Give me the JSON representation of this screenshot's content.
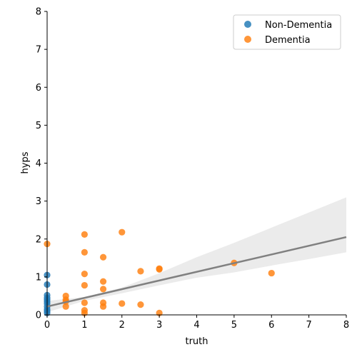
{
  "chart_data": {
    "type": "scatter",
    "xlabel": "truth",
    "ylabel": "hyps",
    "xlim": [
      0,
      8
    ],
    "ylim": [
      0,
      8
    ],
    "x_ticks": [
      "0",
      "1",
      "2",
      "3",
      "4",
      "5",
      "6",
      "7",
      "8"
    ],
    "y_ticks": [
      "0",
      "1",
      "2",
      "3",
      "4",
      "5",
      "6",
      "7",
      "8"
    ],
    "grid": false,
    "legend_position": "top-right",
    "series": [
      {
        "name": "Non-Dementia",
        "color": "#1f77b4",
        "points": [
          {
            "x": 0,
            "y": 1.05
          },
          {
            "x": 0,
            "y": 0.8
          },
          {
            "x": 0,
            "y": 0.52
          },
          {
            "x": 0,
            "y": 0.45
          },
          {
            "x": 0,
            "y": 0.4
          },
          {
            "x": 0,
            "y": 0.35
          },
          {
            "x": 0,
            "y": 0.3
          },
          {
            "x": 0,
            "y": 0.22
          },
          {
            "x": 0,
            "y": 0.15
          },
          {
            "x": 0,
            "y": 0.1
          },
          {
            "x": 0,
            "y": 0.05
          }
        ]
      },
      {
        "name": "Dementia",
        "color": "#ff7f0e",
        "points": [
          {
            "x": 0,
            "y": 1.87
          },
          {
            "x": 0.5,
            "y": 0.5
          },
          {
            "x": 0.5,
            "y": 0.4
          },
          {
            "x": 0.5,
            "y": 0.35
          },
          {
            "x": 0.5,
            "y": 0.22
          },
          {
            "x": 1,
            "y": 2.12
          },
          {
            "x": 1,
            "y": 1.65
          },
          {
            "x": 1,
            "y": 1.08
          },
          {
            "x": 1,
            "y": 0.78
          },
          {
            "x": 1,
            "y": 0.32
          },
          {
            "x": 1,
            "y": 0.12
          },
          {
            "x": 1,
            "y": 0.05
          },
          {
            "x": 1.5,
            "y": 1.52
          },
          {
            "x": 1.5,
            "y": 0.88
          },
          {
            "x": 1.5,
            "y": 0.68
          },
          {
            "x": 1.5,
            "y": 0.32
          },
          {
            "x": 1.5,
            "y": 0.22
          },
          {
            "x": 2,
            "y": 2.18
          },
          {
            "x": 2,
            "y": 0.3
          },
          {
            "x": 2.5,
            "y": 1.15
          },
          {
            "x": 2.5,
            "y": 0.27
          },
          {
            "x": 3,
            "y": 1.22
          },
          {
            "x": 3,
            "y": 1.2
          },
          {
            "x": 3,
            "y": 0.05
          },
          {
            "x": 5,
            "y": 1.37
          },
          {
            "x": 6,
            "y": 1.1
          }
        ]
      }
    ],
    "regression": {
      "color": "#808080",
      "line": [
        {
          "x": 0,
          "y": 0.22
        },
        {
          "x": 8,
          "y": 2.05
        }
      ],
      "ci_upper": [
        {
          "x": 0,
          "y": 0.37
        },
        {
          "x": 1,
          "y": 0.47
        },
        {
          "x": 2,
          "y": 0.72
        },
        {
          "x": 3,
          "y": 1.1
        },
        {
          "x": 4,
          "y": 1.52
        },
        {
          "x": 5,
          "y": 1.9
        },
        {
          "x": 6,
          "y": 2.3
        },
        {
          "x": 7,
          "y": 2.7
        },
        {
          "x": 8,
          "y": 3.1
        }
      ],
      "ci_lower": [
        {
          "x": 0,
          "y": 0.07
        },
        {
          "x": 1,
          "y": 0.37
        },
        {
          "x": 2,
          "y": 0.57
        },
        {
          "x": 3,
          "y": 0.78
        },
        {
          "x": 4,
          "y": 0.98
        },
        {
          "x": 5,
          "y": 1.12
        },
        {
          "x": 6,
          "y": 1.3
        },
        {
          "x": 7,
          "y": 1.47
        },
        {
          "x": 8,
          "y": 1.65
        }
      ],
      "ci_color": "#d3d3d3"
    }
  }
}
